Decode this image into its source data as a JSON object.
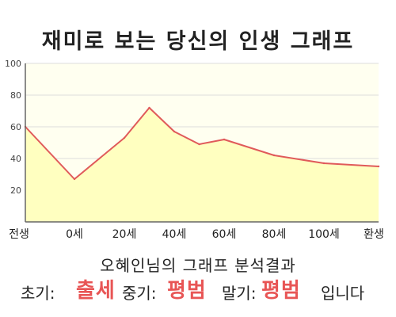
{
  "title": "재미로 보는 당신의 인생 그래프",
  "chart_data": {
    "type": "area",
    "title": "",
    "xlabel": "",
    "ylabel": "",
    "ylim": [
      0,
      100
    ],
    "yticks": [
      20,
      40,
      60,
      80,
      100
    ],
    "x_tick_labels": [
      "전생",
      "0세",
      "20세",
      "40세",
      "60세",
      "80세",
      "100세",
      "환생"
    ],
    "series": [
      {
        "points": [
          {
            "x": "전생",
            "y": 60
          },
          {
            "x": "0세",
            "y": 27
          },
          {
            "x": "20세",
            "y": 53
          },
          {
            "x": "30세",
            "y": 72
          },
          {
            "x": "40세",
            "y": 57
          },
          {
            "x": "50세",
            "y": 49
          },
          {
            "x": "60세",
            "y": 52
          },
          {
            "x": "80세",
            "y": 42
          },
          {
            "x": "100세",
            "y": 37
          },
          {
            "x": "환생",
            "y": 35
          }
        ]
      }
    ],
    "grid": true,
    "colors": {
      "line": "#e05a5a",
      "fill": "#ffffc0",
      "plot_bg": "#fffff0",
      "grid": "#dddddd",
      "axis": "#666666",
      "result_value": "#e85555"
    }
  },
  "result": {
    "caption": "오혜인님의 그래프 분석결과",
    "early_label": "초기:",
    "early_value": "출세",
    "middle_label": "중기:",
    "middle_value": "평범",
    "late_label": "말기:",
    "late_value": "평범",
    "ending": "입니다"
  }
}
